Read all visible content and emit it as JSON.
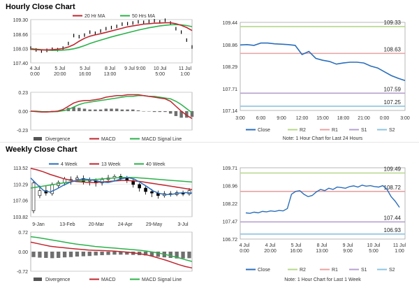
{
  "hourly_title": "Hourly Close Chart",
  "weekly_title": "Weekly Close Chart",
  "colors": {
    "up_candle": "#ffffff",
    "down_candle": "#000000",
    "ma_short": "#c0262e",
    "ma_long": "#2bb24a",
    "close_line": "#2a6ebb",
    "r2": "#b5d88a",
    "r1": "#e8a2a2",
    "s1": "#b7a0cf",
    "s2": "#8cc4e0",
    "divergence": "#6f6f6f"
  },
  "chart_data": [
    {
      "id": "hourly_price",
      "type": "line",
      "legend": [
        "20 Hr MA",
        "50 Hrs MA"
      ],
      "y_ticks": [
        "109.30",
        "108.66",
        "108.03",
        "107.40"
      ],
      "ylim": [
        107.4,
        109.3
      ],
      "x_ticks": [
        [
          "4 Jul",
          "0:00"
        ],
        [
          "5 Jul",
          "20:00"
        ],
        [
          "5 Jul",
          "16:00"
        ],
        [
          "8 Jul",
          "13:00"
        ],
        [
          "9 Jul 9:00",
          ""
        ],
        [
          "10 Jul",
          "5:00"
        ],
        [
          "11 Jul",
          "1:00"
        ]
      ],
      "series": [
        {
          "name": "20 Hr MA",
          "values": [
            108.0,
            107.98,
            107.97,
            107.97,
            107.98,
            108.0,
            108.03,
            108.1,
            108.2,
            108.35,
            108.48,
            108.57,
            108.63,
            108.68,
            108.74,
            108.8,
            108.86,
            108.92,
            108.98,
            109.02,
            109.06,
            109.1,
            109.12,
            109.14,
            109.15,
            109.16,
            109.16,
            109.12,
            109.05,
            108.95,
            108.82
          ]
        },
        {
          "name": "50 Hrs MA",
          "values": [
            108.03,
            108.0,
            107.98,
            107.96,
            107.95,
            107.95,
            107.96,
            107.98,
            108.02,
            108.08,
            108.16,
            108.25,
            108.33,
            108.4,
            108.47,
            108.54,
            108.6,
            108.66,
            108.72,
            108.78,
            108.84,
            108.89,
            108.94,
            108.98,
            109.02,
            109.05,
            109.07,
            109.08,
            109.07,
            109.04,
            108.99
          ]
        }
      ],
      "close": [
        108.05,
        107.97,
        107.92,
        107.95,
        108.0,
        107.98,
        108.05,
        108.25,
        108.6,
        108.55,
        108.62,
        108.75,
        108.7,
        108.8,
        108.9,
        108.95,
        109.0,
        109.1,
        109.12,
        109.15,
        109.2,
        109.18,
        109.22,
        109.25,
        109.2,
        109.27,
        109.15,
        108.9,
        108.75,
        108.4,
        108.1
      ]
    },
    {
      "id": "hourly_macd",
      "type": "line",
      "y_ticks": [
        "0.23",
        "0.00",
        "-0.23"
      ],
      "ylim": [
        -0.23,
        0.23
      ],
      "legend": [
        "Divergence",
        "MACD",
        "MACD Signal Line"
      ],
      "macd": [
        0.0,
        -0.005,
        -0.01,
        -0.01,
        -0.005,
        0.0,
        0.02,
        0.06,
        0.1,
        0.12,
        0.13,
        0.13,
        0.14,
        0.15,
        0.17,
        0.18,
        0.19,
        0.19,
        0.2,
        0.2,
        0.2,
        0.19,
        0.18,
        0.17,
        0.16,
        0.15,
        0.12,
        0.06,
        0.0,
        -0.05,
        -0.09
      ],
      "signal": [
        0.0,
        0.0,
        -0.005,
        -0.008,
        -0.008,
        -0.005,
        0.005,
        0.02,
        0.05,
        0.08,
        0.1,
        0.11,
        0.12,
        0.13,
        0.14,
        0.15,
        0.16,
        0.17,
        0.18,
        0.18,
        0.19,
        0.19,
        0.18,
        0.18,
        0.17,
        0.16,
        0.15,
        0.12,
        0.08,
        0.03,
        -0.02
      ],
      "divergence": [
        0.0,
        -0.005,
        -0.005,
        -0.002,
        0.003,
        0.005,
        0.015,
        0.04,
        0.05,
        0.04,
        0.03,
        0.02,
        0.02,
        0.02,
        0.03,
        0.03,
        0.03,
        0.02,
        0.02,
        0.02,
        0.01,
        0.0,
        0.0,
        -0.01,
        -0.01,
        -0.01,
        -0.03,
        -0.06,
        -0.08,
        -0.08,
        -0.07
      ]
    },
    {
      "id": "hourly_close_24h",
      "type": "line",
      "y_ticks": [
        "109.44",
        "108.86",
        "108.29",
        "107.71",
        "107.14"
      ],
      "ylim": [
        107.14,
        109.44
      ],
      "x_ticks": [
        "3:00",
        "6:00",
        "9:00",
        "12:00",
        "15:00",
        "18:00",
        "21:00",
        "0:00",
        "3:00"
      ],
      "levels": [
        {
          "name": "R2",
          "value": 109.33,
          "label": "109.33"
        },
        {
          "name": "R1",
          "value": 108.63,
          "label": "108.63"
        },
        {
          "name": "S1",
          "value": 107.59,
          "label": "107.59"
        },
        {
          "name": "S2",
          "value": 107.25,
          "label": "107.25"
        }
      ],
      "legend": [
        "Close",
        "R2",
        "R1",
        "S1",
        "S2"
      ],
      "note": "Note: 1 Hour Chart for Last 24 Hours",
      "close": [
        108.85,
        108.86,
        108.84,
        108.9,
        108.9,
        108.88,
        108.87,
        108.86,
        108.84,
        108.6,
        108.68,
        108.5,
        108.45,
        108.42,
        108.35,
        108.38,
        108.4,
        108.4,
        108.38,
        108.3,
        108.25,
        108.15,
        108.05,
        107.98,
        107.92
      ]
    },
    {
      "id": "weekly_price",
      "type": "line",
      "legend": [
        "4 Week",
        "13 Week",
        "40 Week"
      ],
      "y_ticks": [
        "113.52",
        "110.29",
        "107.06",
        "103.82"
      ],
      "ylim": [
        103.82,
        113.52
      ],
      "x_ticks": [
        "9-Jan",
        "13-Feb",
        "20-Mar",
        "24-Apr",
        "29-May",
        "3-Jul"
      ],
      "series": [
        {
          "name": "4 Week",
          "values": [
            111.5,
            110.2,
            109.0,
            108.7,
            109.3,
            110.0,
            110.6,
            111.0,
            111.3,
            111.2,
            111.0,
            110.7,
            110.6,
            110.9,
            111.3,
            111.6,
            111.3,
            110.6,
            109.8,
            108.9,
            108.4,
            108.2,
            108.3,
            108.5,
            108.6,
            108.5
          ]
        },
        {
          "name": "13 Week",
          "values": [
            113.4,
            113.1,
            112.7,
            112.2,
            111.8,
            111.4,
            111.1,
            110.8,
            110.7,
            110.6,
            110.6,
            110.7,
            110.8,
            110.9,
            111.0,
            111.0,
            110.9,
            110.8,
            110.6,
            110.4,
            110.2,
            110.0,
            109.8,
            109.6,
            109.4,
            109.2
          ]
        },
        {
          "name": "40 Week",
          "values": [
            109.5,
            109.7,
            109.9,
            110.1,
            110.3,
            110.5,
            110.7,
            110.9,
            111.0,
            111.1,
            111.2,
            111.3,
            111.4,
            111.5,
            111.6,
            111.6,
            111.6,
            111.5,
            111.4,
            111.3,
            111.2,
            111.1,
            111.0,
            110.9,
            110.8,
            110.7
          ]
        }
      ],
      "candles": [
        [
          105.0,
          110.5,
          104.5,
          111.0
        ],
        [
          108.0,
          109.0,
          107.5,
          110.0
        ],
        [
          109.0,
          108.5,
          108.0,
          110.0
        ],
        [
          108.4,
          110.2,
          108.0,
          110.6
        ],
        [
          110.0,
          110.6,
          109.5,
          111.0
        ],
        [
          110.5,
          111.3,
          110.0,
          111.7
        ],
        [
          111.0,
          111.2,
          110.2,
          111.8
        ],
        [
          111.2,
          111.5,
          110.8,
          112.0
        ],
        [
          111.4,
          110.8,
          110.2,
          112.0
        ],
        [
          110.9,
          111.0,
          110.0,
          111.6
        ],
        [
          111.0,
          110.5,
          109.8,
          111.4
        ],
        [
          110.5,
          111.2,
          110.0,
          111.6
        ],
        [
          111.2,
          111.5,
          110.8,
          112.1
        ],
        [
          111.5,
          111.8,
          111.0,
          112.2
        ],
        [
          111.8,
          111.4,
          110.9,
          112.3
        ],
        [
          111.4,
          111.0,
          110.5,
          111.9
        ],
        [
          111.0,
          110.2,
          109.6,
          111.3
        ],
        [
          110.2,
          109.5,
          108.8,
          110.5
        ],
        [
          109.5,
          108.8,
          108.2,
          109.9
        ],
        [
          108.8,
          108.5,
          107.7,
          109.3
        ],
        [
          108.5,
          108.0,
          107.4,
          109.0
        ],
        [
          108.0,
          108.4,
          107.6,
          108.9
        ],
        [
          108.4,
          108.2,
          107.8,
          108.9
        ],
        [
          108.2,
          108.6,
          107.9,
          109.0
        ],
        [
          108.6,
          108.3,
          107.9,
          109.0
        ],
        [
          108.3,
          109.0,
          108.0,
          109.5
        ]
      ]
    },
    {
      "id": "weekly_macd",
      "type": "line",
      "y_ticks": [
        "0.72",
        "0.00",
        "-0.72"
      ],
      "ylim": [
        -0.72,
        0.72
      ],
      "legend": [
        "Divergence",
        "MACD",
        "MACD Signal Line"
      ],
      "macd": [
        0.35,
        0.3,
        0.25,
        0.2,
        0.17,
        0.15,
        0.12,
        0.1,
        0.08,
        0.06,
        0.05,
        0.04,
        0.03,
        0.02,
        0.0,
        -0.02,
        -0.05,
        -0.08,
        -0.12,
        -0.18,
        -0.25,
        -0.32,
        -0.4,
        -0.48,
        -0.55,
        -0.6
      ],
      "signal": [
        0.55,
        0.52,
        0.48,
        0.44,
        0.4,
        0.36,
        0.32,
        0.28,
        0.25,
        0.22,
        0.19,
        0.17,
        0.15,
        0.13,
        0.11,
        0.09,
        0.07,
        0.05,
        0.02,
        -0.02,
        -0.06,
        -0.11,
        -0.17,
        -0.23,
        -0.3,
        -0.36
      ],
      "divergence": [
        -0.2,
        -0.22,
        -0.23,
        -0.24,
        -0.23,
        -0.21,
        -0.2,
        -0.18,
        -0.17,
        -0.16,
        -0.14,
        -0.13,
        -0.12,
        -0.11,
        -0.11,
        -0.11,
        -0.12,
        -0.13,
        -0.14,
        -0.16,
        -0.19,
        -0.21,
        -0.23,
        -0.25,
        -0.25,
        -0.24
      ]
    },
    {
      "id": "weekly_close_1w",
      "type": "line",
      "y_ticks": [
        "109.71",
        "108.96",
        "108.22",
        "107.47",
        "106.72"
      ],
      "ylim": [
        106.72,
        109.71
      ],
      "x_ticks": [
        [
          "4 Jul",
          "0:00"
        ],
        [
          "4 Jul",
          "20:00"
        ],
        [
          "5 Jul",
          "16:00"
        ],
        [
          "8 Jul",
          "13:00"
        ],
        [
          "9 Jul",
          "9:00"
        ],
        [
          "10 Jul",
          "5:00"
        ],
        [
          "11 Jul",
          "1:00"
        ]
      ],
      "levels": [
        {
          "name": "R2",
          "value": 109.49,
          "label": "109.49"
        },
        {
          "name": "R1",
          "value": 108.72,
          "label": "108.72"
        },
        {
          "name": "S1",
          "value": 107.44,
          "label": "107.44"
        },
        {
          "name": "S2",
          "value": 106.93,
          "label": "106.93"
        }
      ],
      "legend": [
        "Close",
        "R2",
        "R1",
        "S1",
        "S2"
      ],
      "note": "Note: 1 Hour Chart for Last 1 Week",
      "close": [
        107.82,
        107.8,
        107.85,
        107.82,
        107.88,
        107.86,
        107.9,
        107.88,
        107.92,
        107.9,
        108.0,
        108.6,
        108.72,
        108.75,
        108.6,
        108.5,
        108.55,
        108.7,
        108.8,
        108.75,
        108.85,
        108.8,
        108.9,
        108.88,
        108.85,
        108.92,
        108.95,
        108.9,
        108.98,
        108.94,
        108.96,
        108.92,
        108.9,
        108.96,
        108.8,
        108.5,
        108.3,
        108.05
      ]
    }
  ]
}
